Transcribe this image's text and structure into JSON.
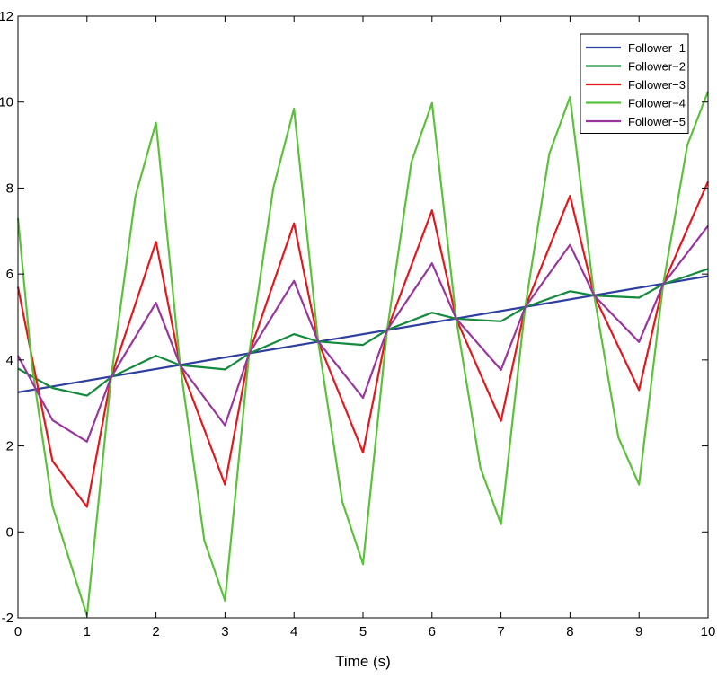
{
  "chart_data": {
    "type": "line",
    "title": "",
    "xlabel": "Time (s)",
    "ylabel": "",
    "xlim": [
      0,
      10
    ],
    "ylim": [
      -2,
      12
    ],
    "xticks": [
      0,
      1,
      2,
      3,
      4,
      5,
      6,
      7,
      8,
      9,
      10
    ],
    "yticks": [
      -2,
      0,
      2,
      4,
      6,
      8,
      10,
      12
    ],
    "grid": false,
    "legend_position": "top-right",
    "series": [
      {
        "name": "Follower−1",
        "color": "#2e3fa0",
        "x": [
          0,
          10
        ],
        "y": [
          3.25,
          5.95
        ]
      },
      {
        "name": "Follower−2",
        "color": "#138a3c",
        "x": [
          0,
          0.5,
          1,
          1.35,
          2,
          2.35,
          3,
          3.35,
          4,
          4.35,
          5,
          5.35,
          6,
          6.35,
          7,
          7.35,
          8,
          8.35,
          9,
          9.35,
          10
        ],
        "y": [
          3.8,
          3.35,
          3.17,
          3.6,
          4.1,
          3.88,
          3.78,
          4.15,
          4.6,
          4.43,
          4.35,
          4.7,
          5.1,
          4.96,
          4.9,
          5.23,
          5.6,
          5.5,
          5.45,
          5.76,
          6.12
        ]
      },
      {
        "name": "Follower−3",
        "color": "#e3171c",
        "x": [
          0,
          0.5,
          1,
          1.35,
          2,
          2.35,
          3,
          3.35,
          4,
          4.35,
          5,
          5.35,
          6,
          6.35,
          7,
          7.35,
          8,
          8.35,
          9,
          9.35,
          10
        ],
        "y": [
          5.7,
          1.65,
          0.58,
          3.6,
          6.75,
          3.88,
          1.1,
          4.15,
          7.18,
          4.43,
          1.85,
          4.7,
          7.48,
          4.96,
          2.58,
          5.23,
          7.82,
          5.5,
          3.3,
          5.76,
          8.15
        ]
      },
      {
        "name": "Follower−4",
        "color": "#5cc13a",
        "x": [
          0,
          0.2,
          0.5,
          1,
          1.35,
          1.7,
          2,
          2.35,
          2.7,
          3,
          3.35,
          3.7,
          4,
          4.35,
          4.7,
          5,
          5.35,
          5.7,
          6,
          6.35,
          6.7,
          7,
          7.35,
          7.7,
          8,
          8.35,
          8.7,
          9,
          9.35,
          9.7,
          10
        ],
        "y": [
          7.3,
          3.9,
          0.6,
          -1.95,
          3.6,
          7.8,
          9.52,
          3.88,
          -0.2,
          -1.6,
          4.15,
          8.0,
          9.85,
          4.43,
          0.7,
          -0.75,
          4.7,
          8.6,
          9.98,
          4.96,
          1.5,
          0.18,
          5.23,
          8.8,
          10.12,
          5.5,
          2.2,
          1.1,
          5.76,
          9.0,
          10.25
        ]
      },
      {
        "name": "Follower−5",
        "color": "#9a359f",
        "x": [
          0,
          0.5,
          1,
          1.35,
          2,
          2.35,
          3,
          3.35,
          4,
          4.35,
          5,
          5.35,
          6,
          6.35,
          7,
          7.35,
          8,
          8.35,
          9,
          9.35,
          10
        ],
        "y": [
          4.1,
          2.6,
          2.1,
          3.6,
          5.33,
          3.88,
          2.48,
          4.15,
          5.84,
          4.43,
          3.12,
          4.7,
          6.25,
          4.96,
          3.77,
          5.23,
          6.68,
          5.5,
          4.42,
          5.76,
          7.12
        ]
      }
    ]
  }
}
